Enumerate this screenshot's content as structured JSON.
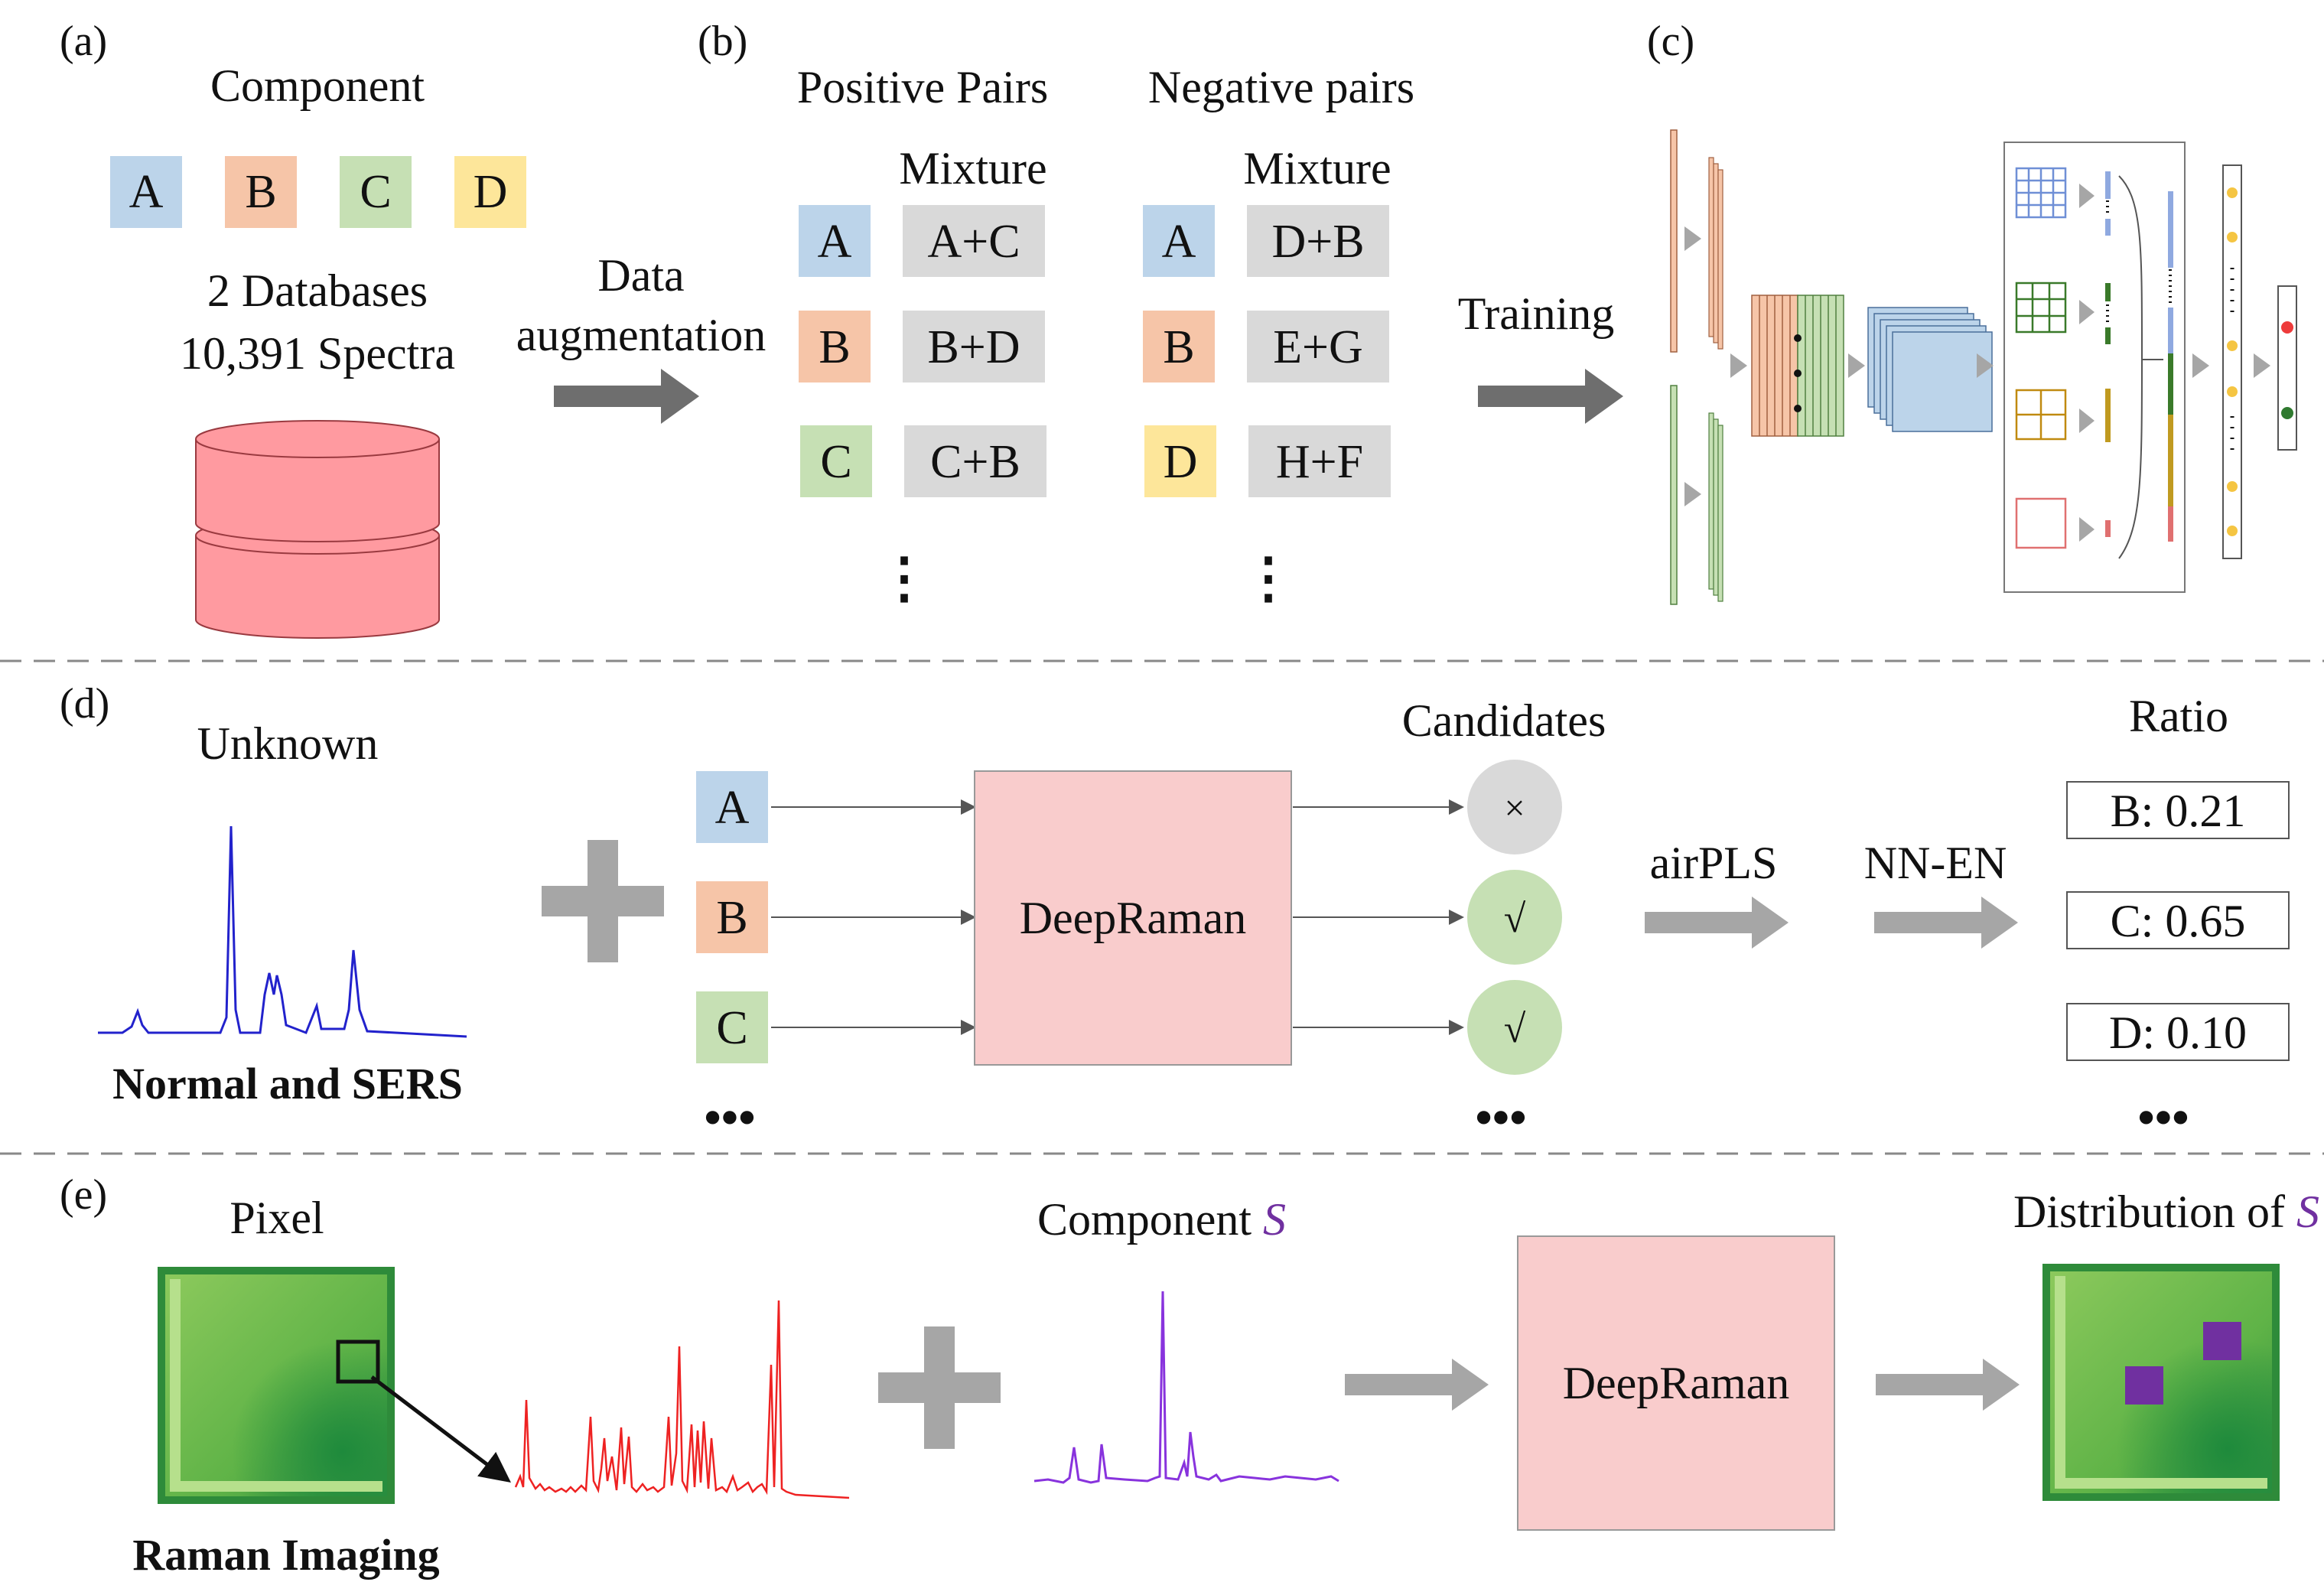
{
  "panel_a": {
    "tag": "(a)",
    "title": "Component",
    "components": [
      "A",
      "B",
      "C",
      "D"
    ],
    "databases": "2 Databases",
    "spectra": "10,391 Spectra",
    "arrow_label_1": "Data",
    "arrow_label_2": "augmentation"
  },
  "panel_b": {
    "tag": "(b)",
    "positive_title": "Positive Pairs",
    "negative_title": "Negative pairs",
    "mixture_label": "Mixture",
    "positive_rows": [
      {
        "component": "A",
        "mixture": "A+C"
      },
      {
        "component": "B",
        "mixture": "B+D"
      },
      {
        "component": "C",
        "mixture": "C+B"
      }
    ],
    "negative_rows": [
      {
        "component": "A",
        "mixture": "D+B"
      },
      {
        "component": "B",
        "mixture": "E+G"
      },
      {
        "component": "D",
        "mixture": "H+F"
      }
    ],
    "ellipsis": "⋮"
  },
  "panel_c": {
    "tag": "(c)",
    "arrow_label": "Training"
  },
  "panel_d": {
    "tag": "(d)",
    "unknown_label": "Unknown",
    "spectrum_caption": "Normal and SERS",
    "inputs": [
      "A",
      "B",
      "C"
    ],
    "model_label": "DeepRaman",
    "candidates_label": "Candidates",
    "candidate_marks": [
      "×",
      "√",
      "√"
    ],
    "step1_label": "airPLS",
    "step2_label": "NN-EN",
    "ratio_label": "Ratio",
    "ratios": [
      "B: 0.21",
      "C: 0.65",
      "D: 0.10"
    ],
    "ellipsis": "•••"
  },
  "panel_e": {
    "tag": "(e)",
    "pixel_label": "Pixel",
    "imaging_caption": "Raman Imaging",
    "component_label": "Component ",
    "component_symbol": "S",
    "model_label": "DeepRaman",
    "distribution_label": "Distribution of ",
    "distribution_symbol": "S"
  },
  "colors": {
    "blue_box": "#bcd4ea",
    "orange_box": "#f6c5a8",
    "green_box": "#c6e0b4",
    "yellow_box": "#fde69a",
    "gray_box": "#d9d9d9",
    "database_red": "#ff9aa0",
    "deepraman_pink": "#f9cccc",
    "arrow_gray": "#8c8c8c",
    "spectrum_blue": "#2222cc",
    "spectrum_red": "#ee2222",
    "spectrum_purple": "#8833dd",
    "purple_symbol": "#7030a0"
  }
}
